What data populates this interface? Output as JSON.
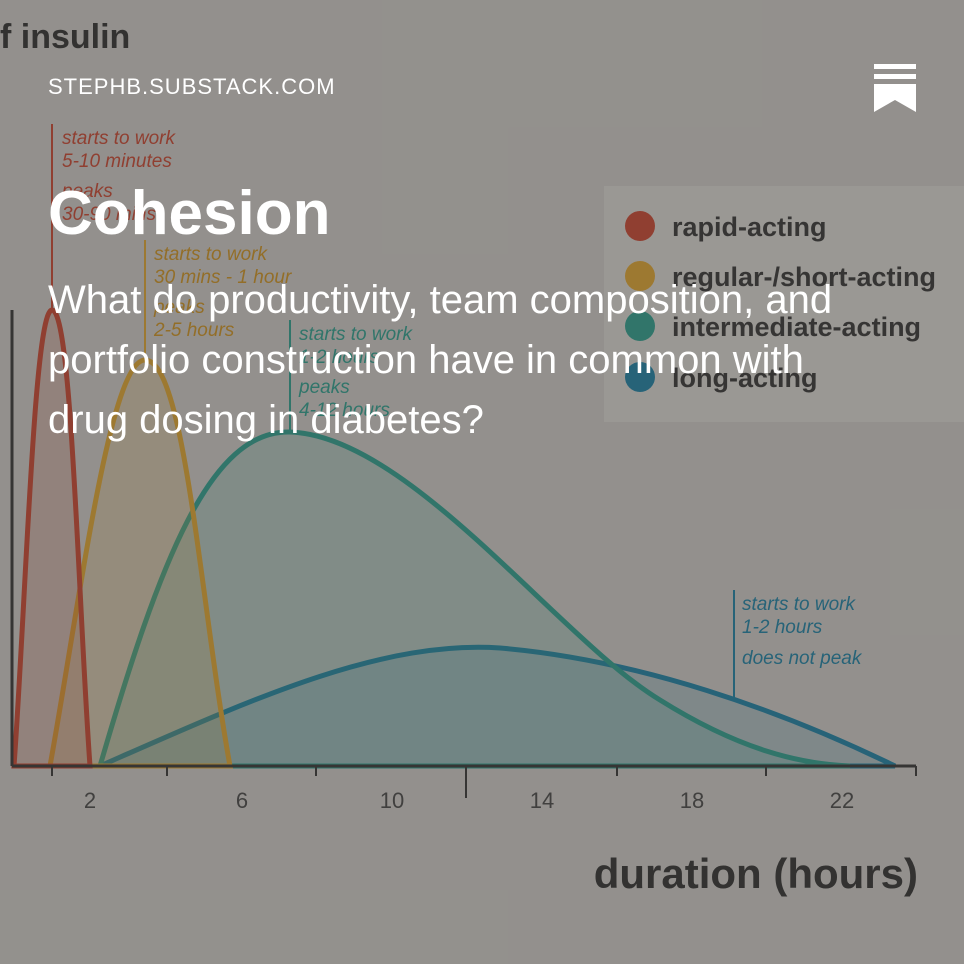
{
  "header": {
    "site": "STEPHB.SUBSTACK.COM",
    "bookmark_icon": "bookmark-icon"
  },
  "post": {
    "title": "Cohesion",
    "subtitle": "What do productivity, team composition, and portfolio construction have in common with drug dosing in diabetes?"
  },
  "background_figure": {
    "title_fragment": "f insulin",
    "xlabel": "duration (hours)",
    "x_ticks": [
      "2",
      "6",
      "10",
      "14",
      "18",
      "22"
    ],
    "legend": [
      {
        "label": "rapid-acting",
        "color": "#c4432e"
      },
      {
        "label": "regular-/short-acting",
        "color": "#d9a02e"
      },
      {
        "label": "intermediate-acting",
        "color": "#2a9a8a"
      },
      {
        "label": "long-acting",
        "color": "#1a7da0"
      }
    ],
    "annotations": {
      "rapid": [
        "starts to work",
        "5-10 minutes",
        "peaks",
        "30-90 mins"
      ],
      "regular": [
        "starts to work",
        "30 mins - 1 hour",
        "peaks",
        "2-5 hours"
      ],
      "intermediate": [
        "starts to work",
        "1-2 hours",
        "peaks",
        "4-12 hours"
      ],
      "long": [
        "starts to work",
        "1-2 hours",
        "does not peak"
      ]
    }
  }
}
